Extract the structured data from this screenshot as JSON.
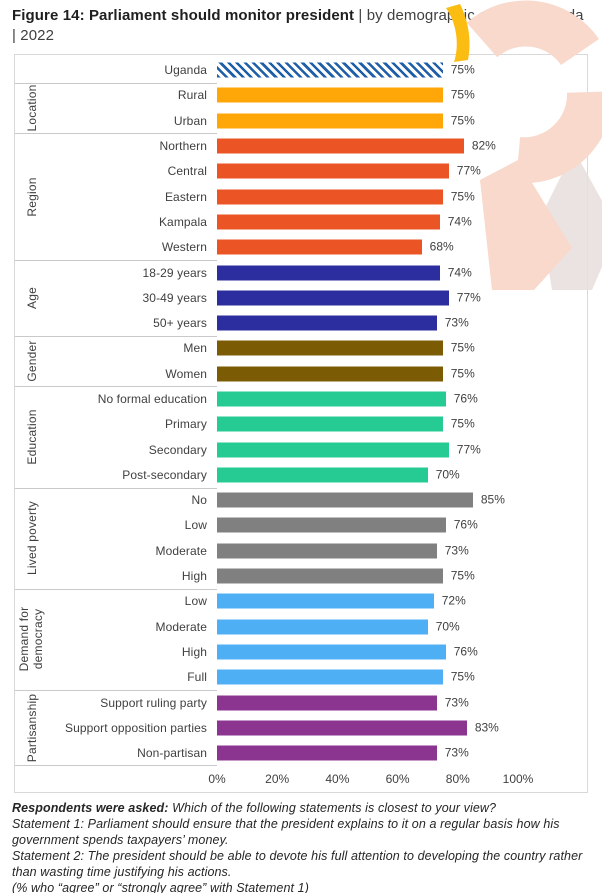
{
  "title": {
    "bold": "Figure 14: Parliament should monitor president",
    "rest": " | by demographic group | Uganda | 2022"
  },
  "chart_data": {
    "type": "bar",
    "orientation": "horizontal",
    "title": "Parliament should monitor president | by demographic group | Uganda | 2022",
    "unit": "%",
    "xlim": [
      0,
      100
    ],
    "x_ticks": [
      "0%",
      "20%",
      "40%",
      "60%",
      "80%",
      "100%"
    ],
    "grid": false,
    "legend": false,
    "groups": [
      {
        "label": "",
        "color": "#1f5fa8",
        "pattern": "diagonal-hatch",
        "bars": [
          {
            "category": "Uganda",
            "value": 75
          }
        ]
      },
      {
        "label": "Location",
        "color": "#ffa608",
        "pattern": "solid",
        "bars": [
          {
            "category": "Rural",
            "value": 75
          },
          {
            "category": "Urban",
            "value": 75
          }
        ]
      },
      {
        "label": "Region",
        "color": "#eb5424",
        "pattern": "solid",
        "bars": [
          {
            "category": "Northern",
            "value": 82
          },
          {
            "category": "Central",
            "value": 77
          },
          {
            "category": "Eastern",
            "value": 75
          },
          {
            "category": "Kampala",
            "value": 74
          },
          {
            "category": "Western",
            "value": 68
          }
        ]
      },
      {
        "label": "Age",
        "color": "#2c2d9e",
        "pattern": "solid",
        "bars": [
          {
            "category": "18-29 years",
            "value": 74
          },
          {
            "category": "30-49 years",
            "value": 77
          },
          {
            "category": "50+ years",
            "value": 73
          }
        ]
      },
      {
        "label": "Gender",
        "color": "#7b5b04",
        "pattern": "solid",
        "bars": [
          {
            "category": "Men",
            "value": 75
          },
          {
            "category": "Women",
            "value": 75
          }
        ]
      },
      {
        "label": "Education",
        "color": "#26cb94",
        "pattern": "solid",
        "bars": [
          {
            "category": "No formal education",
            "value": 76
          },
          {
            "category": "Primary",
            "value": 75
          },
          {
            "category": "Secondary",
            "value": 77
          },
          {
            "category": "Post-secondary",
            "value": 70
          }
        ]
      },
      {
        "label": "Lived poverty",
        "color": "#808080",
        "pattern": "solid",
        "bars": [
          {
            "category": "No",
            "value": 85
          },
          {
            "category": "Low",
            "value": 76
          },
          {
            "category": "Moderate",
            "value": 73
          },
          {
            "category": "High",
            "value": 75
          }
        ]
      },
      {
        "label": "Demand for democracy",
        "color": "#4faff5",
        "pattern": "solid",
        "bars": [
          {
            "category": "Low",
            "value": 72
          },
          {
            "category": "Moderate",
            "value": 70
          },
          {
            "category": "High",
            "value": 76
          },
          {
            "category": "Full",
            "value": 75
          }
        ]
      },
      {
        "label": "Partisanship",
        "color": "#8c3590",
        "pattern": "solid",
        "bars": [
          {
            "category": "Support ruling party",
            "value": 73
          },
          {
            "category": "Support opposition parties",
            "value": 83
          },
          {
            "category": "Non-partisan",
            "value": 73
          }
        ]
      }
    ]
  },
  "footer": {
    "q_prefix": "Respondents were asked:",
    "q_text": " Which of the following statements is closest to your view?",
    "statement1": "Statement 1: Parliament should ensure that the president explains to it on a regular basis how his government spends taxpayers’ money.",
    "statement2": "Statement 2: The president should be able to devote his full attention to developing the country rather than wasting time justifying his actions.",
    "note": "(% who “agree” or “strongly agree” with Statement 1)"
  },
  "watermark": {
    "name": "afrobarometer-logo-watermark",
    "salmon": "#f8d9cc",
    "yellow": "#fcbd13",
    "gray_band": "#e7dedd"
  }
}
